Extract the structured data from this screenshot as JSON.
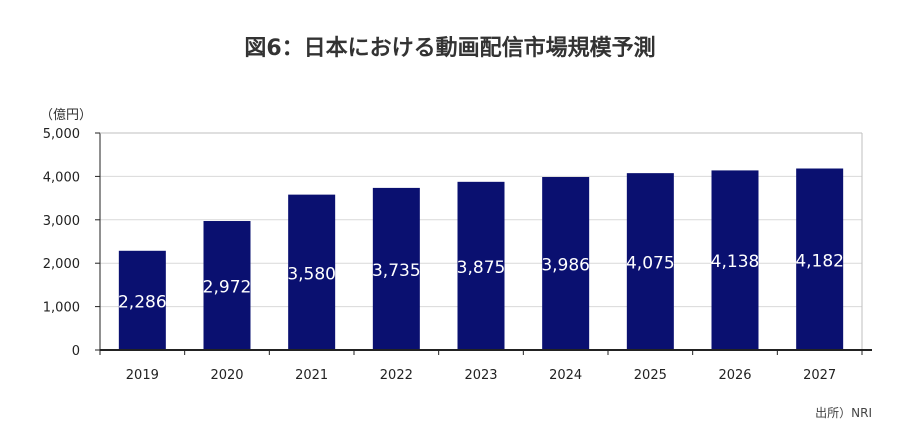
{
  "title": "図6：日本における動画配信市場規模予測",
  "unit": "（億円）",
  "source": "出所）NRI",
  "chart_data": {
    "type": "bar",
    "title": "図6：日本における動画配信市場規模予測",
    "ylabel": "（億円）",
    "xlabel": "",
    "categories": [
      "2019",
      "2020",
      "2021",
      "2022",
      "2023",
      "2024",
      "2025",
      "2026",
      "2027"
    ],
    "values": [
      2286,
      2972,
      3580,
      3735,
      3875,
      3986,
      4075,
      4138,
      4182
    ],
    "data_labels": [
      "2,286",
      "2,972",
      "3,580",
      "3,735",
      "3,875",
      "3,986",
      "4,075",
      "4,138",
      "4,182"
    ],
    "yticks": [
      0,
      1000,
      2000,
      3000,
      4000,
      5000
    ],
    "ytick_labels": [
      "0",
      "1,000",
      "2,000",
      "3,000",
      "4,000",
      "5,000"
    ],
    "ylim": [
      0,
      5000
    ],
    "grid": true,
    "bar_color": "#0a1070",
    "grid_color": "#d9d9d9"
  }
}
